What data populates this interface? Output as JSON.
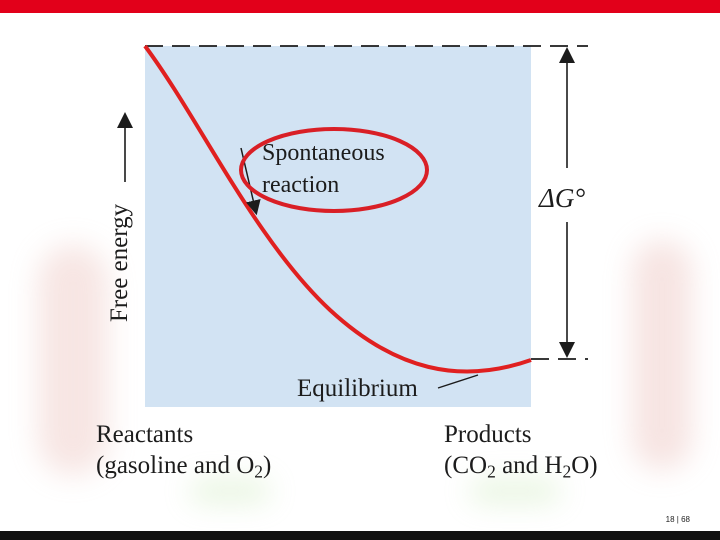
{
  "diagram": {
    "y_axis_label": "Free energy",
    "callout": {
      "line1": "Spontaneous",
      "line2": "reaction"
    },
    "equilibrium_label": "Equilibrium",
    "delta_g": {
      "symbol": "ΔG°"
    },
    "reactants": {
      "line1": "Reactants",
      "line2_prefix": "(gasoline and O",
      "line2_sub": "2",
      "line2_suffix": ")"
    },
    "products": {
      "line1": "Products",
      "line2_prefix": "(CO",
      "line2_sub1": "2",
      "line2_mid": " and H",
      "line2_sub2": "2",
      "line2_suffix": "O)"
    }
  },
  "slide": {
    "page_number": "18 | 68"
  },
  "colors": {
    "plot_background": "#d2e3f3",
    "curve": "#e02020",
    "highlight_circle": "#d91f26",
    "accent_bar": "#e2001a",
    "text": "#1c1c1c"
  }
}
